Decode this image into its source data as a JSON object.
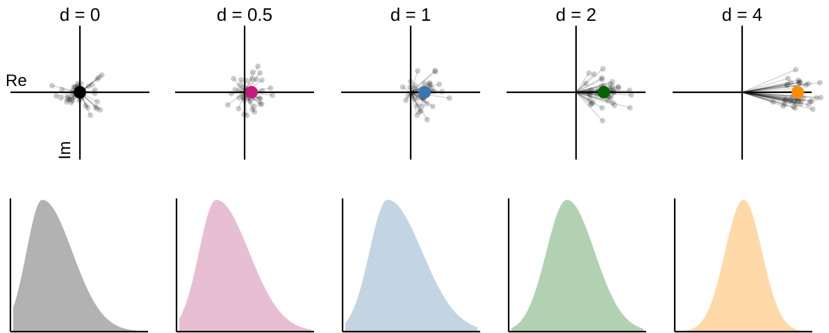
{
  "chart_data": [
    {
      "type": "scatter",
      "title": "d = 0",
      "mean_label_x": "Re",
      "mean_label_y": "Im",
      "center": [
        0,
        0
      ],
      "spread": 1.0,
      "n_points": 40,
      "color": "#000000"
    },
    {
      "type": "scatter",
      "title": "d = 0.5",
      "center": [
        0.5,
        0
      ],
      "spread": 1.0,
      "n_points": 40,
      "color": "#c51b7d"
    },
    {
      "type": "scatter",
      "title": "d = 1",
      "center": [
        1,
        0
      ],
      "spread": 1.0,
      "n_points": 40,
      "color": "#3a75b0"
    },
    {
      "type": "scatter",
      "title": "d = 2",
      "center": [
        2,
        0
      ],
      "spread": 1.0,
      "n_points": 40,
      "color": "#006400"
    },
    {
      "type": "scatter",
      "title": "d = 4",
      "center": [
        4,
        0
      ],
      "spread": 1.0,
      "n_points": 40,
      "color": "#ff8c00"
    },
    {
      "type": "area",
      "d": 0,
      "shape": "right-skewed",
      "peak_at": 0.22,
      "fill": "#b2b2b2"
    },
    {
      "type": "area",
      "d": 0.5,
      "shape": "right-skewed",
      "peak_at": 0.28,
      "fill": "#e8bed3"
    },
    {
      "type": "area",
      "d": 1,
      "shape": "right-skewed",
      "peak_at": 0.32,
      "fill": "#c3d4e3"
    },
    {
      "type": "area",
      "d": 2,
      "shape": "slightly-skewed",
      "peak_at": 0.42,
      "fill": "#b2d1b2"
    },
    {
      "type": "area",
      "d": 4,
      "shape": "symmetric",
      "peak_at": 0.5,
      "fill": "#ffd9a8"
    }
  ]
}
